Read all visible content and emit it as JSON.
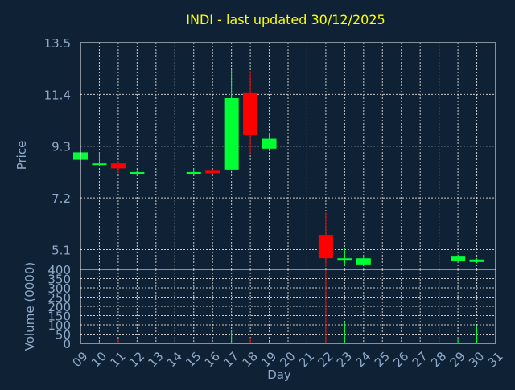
{
  "chart_data": {
    "type": "candlestick",
    "title": "INDI - last updated 30/12/2025",
    "xlabel": "Day",
    "price_panel": {
      "ylabel": "Price",
      "yticks": [
        "13.5",
        "11.4",
        "9.3",
        "7.2",
        "5.1"
      ],
      "ylim": [
        4.3,
        13.5
      ]
    },
    "volume_panel": {
      "ylabel": "Volume (0000)",
      "yticks": [
        "400",
        "350",
        "300",
        "250",
        "200",
        "150",
        "100",
        "50",
        "0"
      ],
      "ylim": [
        0,
        400
      ]
    },
    "x_ticks": [
      "09",
      "10",
      "11",
      "12",
      "13",
      "14",
      "15",
      "16",
      "17",
      "18",
      "19",
      "20",
      "21",
      "22",
      "23",
      "24",
      "25",
      "26",
      "27",
      "28",
      "29",
      "30",
      "31"
    ],
    "grid": true,
    "colors": {
      "background": "#0f2235",
      "grid": "#c8c8c8",
      "up": "#00ff33",
      "down": "#ff0000",
      "title": "#ffff00",
      "axis_text": "#8fa9c8",
      "frame": "#ffffff"
    },
    "candles": [
      {
        "day": "09",
        "open": 8.75,
        "close": 9.05,
        "high": 9.1,
        "low": 8.7,
        "volume": 5
      },
      {
        "day": "10",
        "open": 8.55,
        "close": 8.6,
        "high": 9.05,
        "low": 8.5,
        "volume": 15
      },
      {
        "day": "11",
        "open": 8.6,
        "close": 8.4,
        "high": 8.7,
        "low": 8.2,
        "volume": 25
      },
      {
        "day": "12",
        "open": 8.15,
        "close": 8.25,
        "high": 8.3,
        "low": 8.1,
        "volume": 5
      },
      {
        "day": "15",
        "open": 8.15,
        "close": 8.25,
        "high": 8.35,
        "low": 8.1,
        "volume": 5
      },
      {
        "day": "16",
        "open": 8.3,
        "close": 8.2,
        "high": 8.35,
        "low": 8.15,
        "volume": 5
      },
      {
        "day": "17",
        "open": 8.35,
        "close": 11.25,
        "high": 12.4,
        "low": 8.3,
        "volume": 70
      },
      {
        "day": "18",
        "open": 11.45,
        "close": 9.75,
        "high": 12.35,
        "low": 9.0,
        "volume": 30
      },
      {
        "day": "19",
        "open": 9.2,
        "close": 9.6,
        "high": 9.85,
        "low": 9.1,
        "volume": 10
      },
      {
        "day": "22",
        "open": 5.7,
        "close": 4.75,
        "high": 6.6,
        "low": 4.4,
        "volume": 400
      },
      {
        "day": "23",
        "open": 4.75,
        "close": 4.75,
        "high": 5.15,
        "low": 4.45,
        "volume": 115
      },
      {
        "day": "24",
        "open": 4.5,
        "close": 4.75,
        "high": 4.8,
        "low": 4.5,
        "volume": 5
      },
      {
        "day": "29",
        "open": 4.65,
        "close": 4.85,
        "high": 4.9,
        "low": 4.6,
        "volume": 25
      },
      {
        "day": "30",
        "open": 4.6,
        "close": 4.7,
        "high": 4.75,
        "low": 4.55,
        "volume": 90
      }
    ]
  }
}
